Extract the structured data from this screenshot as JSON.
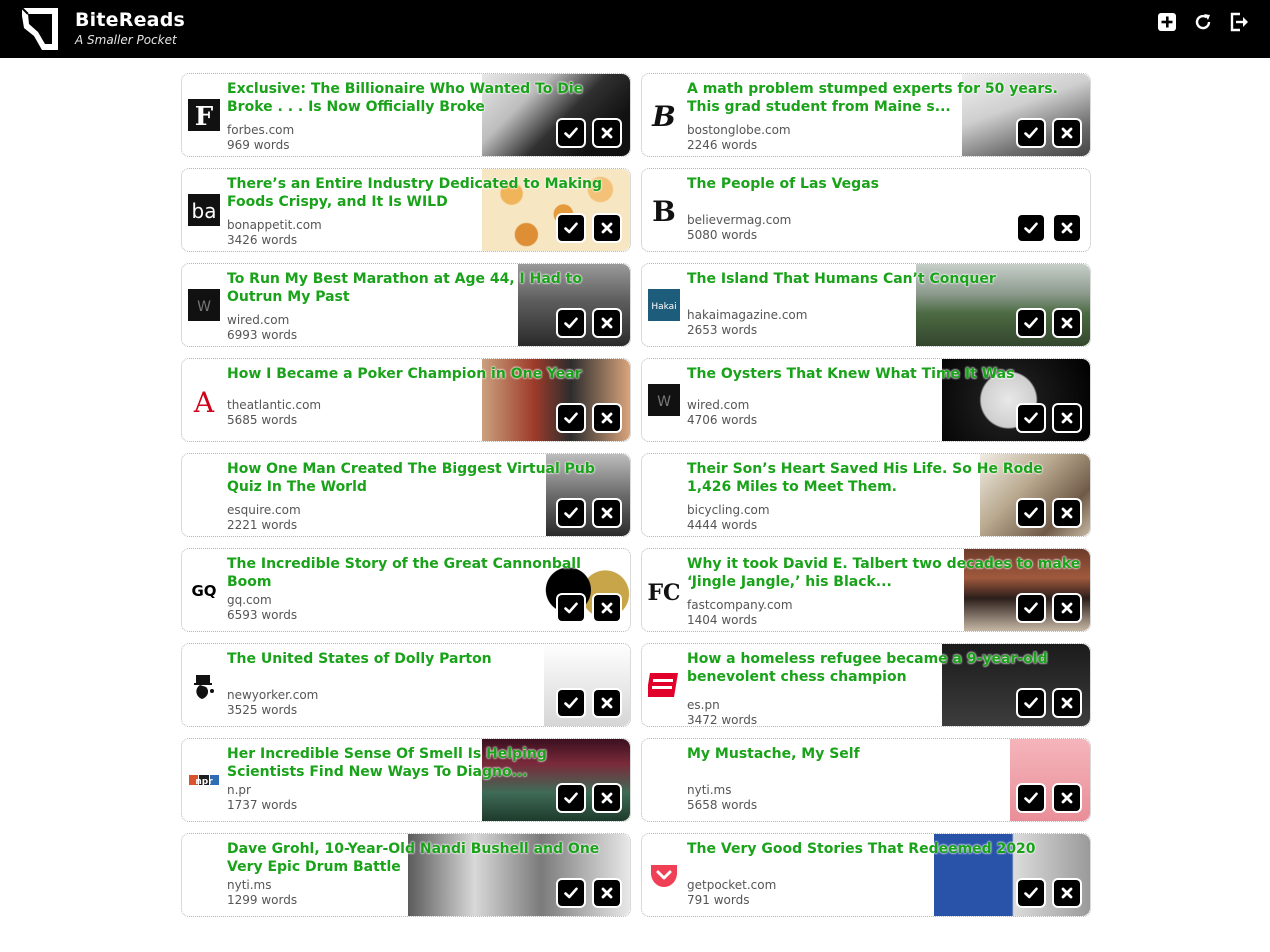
{
  "app": {
    "title": "BiteReads",
    "subtitle": "A Smaller Pocket"
  },
  "icons": {
    "add": "plus-square-icon",
    "refresh": "refresh-icon",
    "logout": "logout-icon",
    "done": "check-icon",
    "dismiss": "close-icon"
  },
  "colors": {
    "accent": "#1aa31a",
    "topbar": "#000000"
  },
  "articles": [
    {
      "title": "Exclusive: The Billionaire Who Wanted To Die Broke . . . Is Now Officially Broke",
      "domain": "forbes.com",
      "words": "969 words",
      "favicon_text": "F"
    },
    {
      "title": "A math problem stumped experts for 50 years. This grad student from Maine s...",
      "domain": "bostonglobe.com",
      "words": "2246 words",
      "favicon_text": "B"
    },
    {
      "title": "There’s an Entire Industry Dedicated to Making Foods Crispy, and It Is WILD",
      "domain": "bonappetit.com",
      "words": "3426 words",
      "favicon_text": "ba"
    },
    {
      "title": "The People of Las Vegas",
      "domain": "believermag.com",
      "words": "5080 words",
      "favicon_text": "B"
    },
    {
      "title": "To Run My Best Marathon at Age 44, I Had to Outrun My Past",
      "domain": "wired.com",
      "words": "6993 words",
      "favicon_text": "W"
    },
    {
      "title": "The Island That Humans Can’t Conquer",
      "domain": "hakaimagazine.com",
      "words": "2653 words",
      "favicon_text": "Hakai"
    },
    {
      "title": "How I Became a Poker Champion in One Year",
      "domain": "theatlantic.com",
      "words": "5685 words",
      "favicon_text": "A"
    },
    {
      "title": "The Oysters That Knew What Time It Was",
      "domain": "wired.com",
      "words": "4706 words",
      "favicon_text": "W"
    },
    {
      "title": "How One Man Created The Biggest Virtual Pub Quiz In The World",
      "domain": "esquire.com",
      "words": "2221 words",
      "favicon_text": ""
    },
    {
      "title": "Their Son’s Heart Saved His Life. So He Rode 1,426 Miles to Meet Them.",
      "domain": "bicycling.com",
      "words": "4444 words",
      "favicon_text": ""
    },
    {
      "title": "The Incredible Story of the Great Cannonball Boom",
      "domain": "gq.com",
      "words": "6593 words",
      "favicon_text": "GQ"
    },
    {
      "title": "Why it took David E. Talbert two decades to make ‘Jingle Jangle,’ his Black...",
      "domain": "fastcompany.com",
      "words": "1404 words",
      "favicon_text": "FC"
    },
    {
      "title": "The United States of Dolly Parton",
      "domain": "newyorker.com",
      "words": "3525 words",
      "favicon_text": ""
    },
    {
      "title": "How a homeless refugee became a 9-year-old benevolent chess champion",
      "domain": "es.pn",
      "words": "3472 words",
      "favicon_text": ""
    },
    {
      "title": "Her Incredible Sense Of Smell Is Helping Scientists Find New Ways To Diagno...",
      "domain": "n.pr",
      "words": "1737 words",
      "favicon_text": "npr"
    },
    {
      "title": "My Mustache, My Self",
      "domain": "nyti.ms",
      "words": "5658 words",
      "favicon_text": ""
    },
    {
      "title": "Dave Grohl, 10-Year-Old Nandi Bushell and One Very Epic Drum Battle",
      "domain": "nyti.ms",
      "words": "1299 words",
      "favicon_text": ""
    },
    {
      "title": "The Very Good Stories That Redeemed 2020",
      "domain": "getpocket.com",
      "words": "791 words",
      "favicon_text": ""
    }
  ]
}
